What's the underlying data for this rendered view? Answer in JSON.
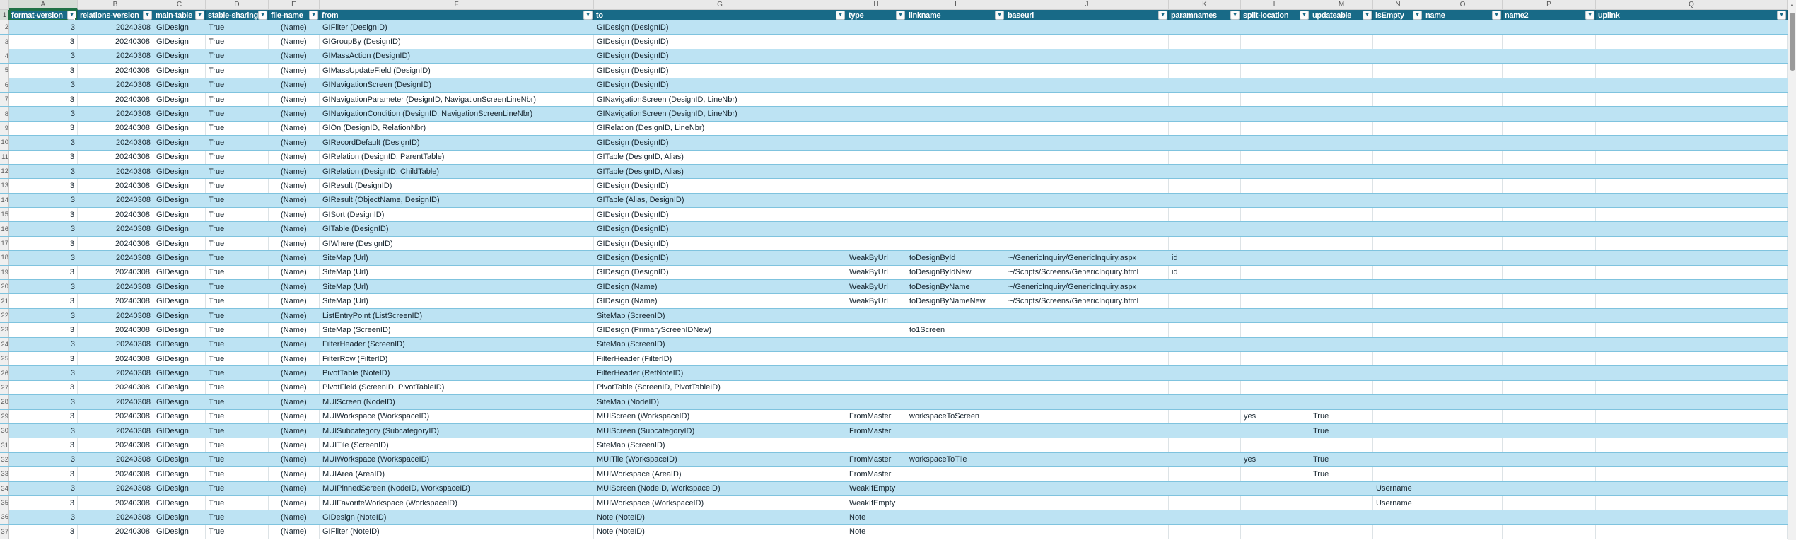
{
  "app": {
    "kind": "spreadsheet-grid"
  },
  "selection": {
    "active_cell": "A1",
    "accent_color": "#1e7145"
  },
  "colors": {
    "header_bg": "#186a87",
    "header_text": "#ffffff",
    "band_row": "#bde3f3",
    "row_line": "#7fc3de",
    "selection_green": "#1e7145"
  },
  "ruler": {
    "corner": "",
    "letters": [
      "A",
      "B",
      "C",
      "D",
      "E",
      "F",
      "G",
      "H",
      "I",
      "J",
      "K",
      "L",
      "M",
      "N",
      "O",
      "P",
      "Q"
    ]
  },
  "header": {
    "row_number": "1",
    "dropdown_glyph": "▼",
    "columns": [
      {
        "letter": "A",
        "label": "format-version"
      },
      {
        "letter": "B",
        "label": "relations-version"
      },
      {
        "letter": "C",
        "label": "main-table"
      },
      {
        "letter": "D",
        "label": "stable-sharing"
      },
      {
        "letter": "E",
        "label": "file-name"
      },
      {
        "letter": "F",
        "label": "from"
      },
      {
        "letter": "G",
        "label": "to"
      },
      {
        "letter": "H",
        "label": "type"
      },
      {
        "letter": "I",
        "label": "linkname"
      },
      {
        "letter": "J",
        "label": "baseurl"
      },
      {
        "letter": "K",
        "label": "paramnames"
      },
      {
        "letter": "L",
        "label": "split-location"
      },
      {
        "letter": "M",
        "label": "updateable"
      },
      {
        "letter": "N",
        "label": "isEmpty"
      },
      {
        "letter": "O",
        "label": "name"
      },
      {
        "letter": "P",
        "label": "name2"
      },
      {
        "letter": "Q",
        "label": "uplink"
      }
    ]
  },
  "column_keys": [
    "format_version",
    "relations_version",
    "main_table",
    "stable_sharing",
    "file_name",
    "from",
    "to",
    "type",
    "linkname",
    "baseurl",
    "paramnames",
    "split_location",
    "updateable",
    "is_empty",
    "name",
    "name2",
    "uplink"
  ],
  "rows": [
    {
      "n": 2,
      "cells": [
        "3",
        "20240308",
        "GIDesign",
        "True",
        "(Name)",
        "GIFilter (DesignID)",
        "GIDesign (DesignID)",
        "",
        "",
        "",
        "",
        "",
        "",
        "",
        "",
        "",
        ""
      ]
    },
    {
      "n": 3,
      "cells": [
        "3",
        "20240308",
        "GIDesign",
        "True",
        "(Name)",
        "GIGroupBy (DesignID)",
        "GIDesign (DesignID)",
        "",
        "",
        "",
        "",
        "",
        "",
        "",
        "",
        "",
        ""
      ]
    },
    {
      "n": 4,
      "cells": [
        "3",
        "20240308",
        "GIDesign",
        "True",
        "(Name)",
        "GIMassAction (DesignID)",
        "GIDesign (DesignID)",
        "",
        "",
        "",
        "",
        "",
        "",
        "",
        "",
        "",
        ""
      ]
    },
    {
      "n": 5,
      "cells": [
        "3",
        "20240308",
        "GIDesign",
        "True",
        "(Name)",
        "GIMassUpdateField (DesignID)",
        "GIDesign (DesignID)",
        "",
        "",
        "",
        "",
        "",
        "",
        "",
        "",
        "",
        ""
      ]
    },
    {
      "n": 6,
      "cells": [
        "3",
        "20240308",
        "GIDesign",
        "True",
        "(Name)",
        "GINavigationScreen (DesignID)",
        "GIDesign (DesignID)",
        "",
        "",
        "",
        "",
        "",
        "",
        "",
        "",
        "",
        ""
      ]
    },
    {
      "n": 7,
      "cells": [
        "3",
        "20240308",
        "GIDesign",
        "True",
        "(Name)",
        "GINavigationParameter (DesignID, NavigationScreenLineNbr)",
        "GINavigationScreen (DesignID, LineNbr)",
        "",
        "",
        "",
        "",
        "",
        "",
        "",
        "",
        "",
        ""
      ]
    },
    {
      "n": 8,
      "cells": [
        "3",
        "20240308",
        "GIDesign",
        "True",
        "(Name)",
        "GINavigationCondition (DesignID, NavigationScreenLineNbr)",
        "GINavigationScreen (DesignID, LineNbr)",
        "",
        "",
        "",
        "",
        "",
        "",
        "",
        "",
        "",
        ""
      ]
    },
    {
      "n": 9,
      "cells": [
        "3",
        "20240308",
        "GIDesign",
        "True",
        "(Name)",
        "GIOn (DesignID, RelationNbr)",
        "GIRelation (DesignID, LineNbr)",
        "",
        "",
        "",
        "",
        "",
        "",
        "",
        "",
        "",
        ""
      ]
    },
    {
      "n": 10,
      "cells": [
        "3",
        "20240308",
        "GIDesign",
        "True",
        "(Name)",
        "GIRecordDefault (DesignID)",
        "GIDesign (DesignID)",
        "",
        "",
        "",
        "",
        "",
        "",
        "",
        "",
        "",
        ""
      ]
    },
    {
      "n": 11,
      "cells": [
        "3",
        "20240308",
        "GIDesign",
        "True",
        "(Name)",
        "GIRelation (DesignID, ParentTable)",
        "GITable (DesignID, Alias)",
        "",
        "",
        "",
        "",
        "",
        "",
        "",
        "",
        "",
        ""
      ]
    },
    {
      "n": 12,
      "cells": [
        "3",
        "20240308",
        "GIDesign",
        "True",
        "(Name)",
        "GIRelation (DesignID, ChildTable)",
        "GITable (DesignID, Alias)",
        "",
        "",
        "",
        "",
        "",
        "",
        "",
        "",
        "",
        ""
      ]
    },
    {
      "n": 13,
      "cells": [
        "3",
        "20240308",
        "GIDesign",
        "True",
        "(Name)",
        "GIResult (DesignID)",
        "GIDesign (DesignID)",
        "",
        "",
        "",
        "",
        "",
        "",
        "",
        "",
        "",
        ""
      ]
    },
    {
      "n": 14,
      "cells": [
        "3",
        "20240308",
        "GIDesign",
        "True",
        "(Name)",
        "GIResult (ObjectName, DesignID)",
        "GITable (Alias, DesignID)",
        "",
        "",
        "",
        "",
        "",
        "",
        "",
        "",
        "",
        ""
      ]
    },
    {
      "n": 15,
      "cells": [
        "3",
        "20240308",
        "GIDesign",
        "True",
        "(Name)",
        "GISort (DesignID)",
        "GIDesign (DesignID)",
        "",
        "",
        "",
        "",
        "",
        "",
        "",
        "",
        "",
        ""
      ]
    },
    {
      "n": 16,
      "cells": [
        "3",
        "20240308",
        "GIDesign",
        "True",
        "(Name)",
        "GITable (DesignID)",
        "GIDesign (DesignID)",
        "",
        "",
        "",
        "",
        "",
        "",
        "",
        "",
        "",
        ""
      ]
    },
    {
      "n": 17,
      "cells": [
        "3",
        "20240308",
        "GIDesign",
        "True",
        "(Name)",
        "GIWhere (DesignID)",
        "GIDesign (DesignID)",
        "",
        "",
        "",
        "",
        "",
        "",
        "",
        "",
        "",
        ""
      ]
    },
    {
      "n": 18,
      "cells": [
        "3",
        "20240308",
        "GIDesign",
        "True",
        "(Name)",
        "SiteMap (Url)",
        "GIDesign (DesignID)",
        "WeakByUrl",
        "toDesignById",
        "~/GenericInquiry/GenericInquiry.aspx",
        "id",
        "",
        "",
        "",
        "",
        "",
        ""
      ]
    },
    {
      "n": 19,
      "cells": [
        "3",
        "20240308",
        "GIDesign",
        "True",
        "(Name)",
        "SiteMap (Url)",
        "GIDesign (DesignID)",
        "WeakByUrl",
        "toDesignByIdNew",
        "~/Scripts/Screens/GenericInquiry.html",
        "id",
        "",
        "",
        "",
        "",
        "",
        ""
      ]
    },
    {
      "n": 20,
      "cells": [
        "3",
        "20240308",
        "GIDesign",
        "True",
        "(Name)",
        "SiteMap (Url)",
        "GIDesign (Name)",
        "WeakByUrl",
        "toDesignByName",
        "~/GenericInquiry/GenericInquiry.aspx",
        "",
        "",
        "",
        "",
        "",
        "",
        ""
      ]
    },
    {
      "n": 21,
      "cells": [
        "3",
        "20240308",
        "GIDesign",
        "True",
        "(Name)",
        "SiteMap (Url)",
        "GIDesign (Name)",
        "WeakByUrl",
        "toDesignByNameNew",
        "~/Scripts/Screens/GenericInquiry.html",
        "",
        "",
        "",
        "",
        "",
        "",
        ""
      ]
    },
    {
      "n": 22,
      "cells": [
        "3",
        "20240308",
        "GIDesign",
        "True",
        "(Name)",
        "ListEntryPoint (ListScreenID)",
        "SiteMap (ScreenID)",
        "",
        "",
        "",
        "",
        "",
        "",
        "",
        "",
        "",
        ""
      ]
    },
    {
      "n": 23,
      "cells": [
        "3",
        "20240308",
        "GIDesign",
        "True",
        "(Name)",
        "SiteMap (ScreenID)",
        "GIDesign (PrimaryScreenIDNew)",
        "",
        "to1Screen",
        "",
        "",
        "",
        "",
        "",
        "",
        "",
        ""
      ]
    },
    {
      "n": 24,
      "cells": [
        "3",
        "20240308",
        "GIDesign",
        "True",
        "(Name)",
        "FilterHeader (ScreenID)",
        "SiteMap (ScreenID)",
        "",
        "",
        "",
        "",
        "",
        "",
        "",
        "",
        "",
        ""
      ]
    },
    {
      "n": 25,
      "cells": [
        "3",
        "20240308",
        "GIDesign",
        "True",
        "(Name)",
        "FilterRow (FilterID)",
        "FilterHeader (FilterID)",
        "",
        "",
        "",
        "",
        "",
        "",
        "",
        "",
        "",
        ""
      ]
    },
    {
      "n": 26,
      "cells": [
        "3",
        "20240308",
        "GIDesign",
        "True",
        "(Name)",
        "PivotTable (NoteID)",
        "FilterHeader (RefNoteID)",
        "",
        "",
        "",
        "",
        "",
        "",
        "",
        "",
        "",
        ""
      ]
    },
    {
      "n": 27,
      "cells": [
        "3",
        "20240308",
        "GIDesign",
        "True",
        "(Name)",
        "PivotField (ScreenID, PivotTableID)",
        "PivotTable (ScreenID, PivotTableID)",
        "",
        "",
        "",
        "",
        "",
        "",
        "",
        "",
        "",
        ""
      ]
    },
    {
      "n": 28,
      "cells": [
        "3",
        "20240308",
        "GIDesign",
        "True",
        "(Name)",
        "MUIScreen (NodeID)",
        "SiteMap (NodeID)",
        "",
        "",
        "",
        "",
        "",
        "",
        "",
        "",
        "",
        ""
      ]
    },
    {
      "n": 29,
      "cells": [
        "3",
        "20240308",
        "GIDesign",
        "True",
        "(Name)",
        "MUIWorkspace (WorkspaceID)",
        "MUIScreen (WorkspaceID)",
        "FromMaster",
        "workspaceToScreen",
        "",
        "",
        "yes",
        "True",
        "",
        "",
        "",
        ""
      ]
    },
    {
      "n": 30,
      "cells": [
        "3",
        "20240308",
        "GIDesign",
        "True",
        "(Name)",
        "MUISubcategory (SubcategoryID)",
        "MUIScreen (SubcategoryID)",
        "FromMaster",
        "",
        "",
        "",
        "",
        "True",
        "",
        "",
        "",
        ""
      ]
    },
    {
      "n": 31,
      "cells": [
        "3",
        "20240308",
        "GIDesign",
        "True",
        "(Name)",
        "MUITile (ScreenID)",
        "SiteMap (ScreenID)",
        "",
        "",
        "",
        "",
        "",
        "",
        "",
        "",
        "",
        ""
      ]
    },
    {
      "n": 32,
      "cells": [
        "3",
        "20240308",
        "GIDesign",
        "True",
        "(Name)",
        "MUIWorkspace (WorkspaceID)",
        "MUITile (WorkspaceID)",
        "FromMaster",
        "workspaceToTile",
        "",
        "",
        "yes",
        "True",
        "",
        "",
        "",
        ""
      ]
    },
    {
      "n": 33,
      "cells": [
        "3",
        "20240308",
        "GIDesign",
        "True",
        "(Name)",
        "MUIArea (AreaID)",
        "MUIWorkspace (AreaID)",
        "FromMaster",
        "",
        "",
        "",
        "",
        "True",
        "",
        "",
        "",
        ""
      ]
    },
    {
      "n": 34,
      "cells": [
        "3",
        "20240308",
        "GIDesign",
        "True",
        "(Name)",
        "MUIPinnedScreen (NodeID, WorkspaceID)",
        "MUIScreen (NodeID, WorkspaceID)",
        "WeakIfEmpty",
        "",
        "",
        "",
        "",
        "",
        "Username",
        "",
        "",
        ""
      ]
    },
    {
      "n": 35,
      "cells": [
        "3",
        "20240308",
        "GIDesign",
        "True",
        "(Name)",
        "MUIFavoriteWorkspace (WorkspaceID)",
        "MUIWorkspace (WorkspaceID)",
        "WeakIfEmpty",
        "",
        "",
        "",
        "",
        "",
        "Username",
        "",
        "",
        ""
      ]
    },
    {
      "n": 36,
      "cells": [
        "3",
        "20240308",
        "GIDesign",
        "True",
        "(Name)",
        "GIDesign (NoteID)",
        "Note (NoteID)",
        "Note",
        "",
        "",
        "",
        "",
        "",
        "",
        "",
        "",
        ""
      ]
    },
    {
      "n": 37,
      "cells": [
        "3",
        "20240308",
        "GIDesign",
        "True",
        "(Name)",
        "GIFilter (NoteID)",
        "Note (NoteID)",
        "Note",
        "",
        "",
        "",
        "",
        "",
        "",
        "",
        "",
        ""
      ]
    }
  ],
  "scrollbar": {
    "up_glyph": "▲"
  }
}
